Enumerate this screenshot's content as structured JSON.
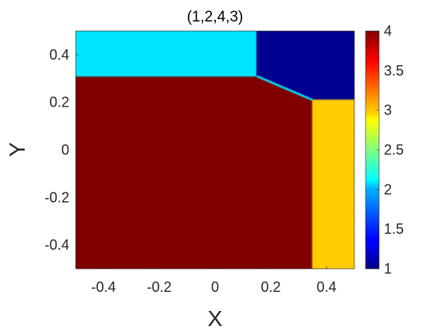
{
  "chart_data": {
    "type": "heatmap",
    "title": "(1,2,4,3)",
    "xlabel": "X",
    "ylabel": "Y",
    "xlim": [
      -0.5,
      0.5
    ],
    "ylim": [
      -0.5,
      0.5
    ],
    "xticks": [
      -0.4,
      -0.2,
      0,
      0.2,
      0.4
    ],
    "xtick_labels": [
      "-0.4",
      "-0.2",
      "0",
      "0.2",
      "0.4"
    ],
    "yticks": [
      -0.4,
      -0.2,
      0,
      0.2,
      0.4
    ],
    "ytick_labels": [
      "-0.4",
      "-0.2",
      "0",
      "0.2",
      "0.4"
    ],
    "colormap": "jet",
    "clim": [
      1,
      4
    ],
    "colorbar_ticks": [
      1,
      1.5,
      2,
      2.5,
      3,
      3.5,
      4
    ],
    "colorbar_tick_labels": [
      "1",
      "1.5",
      "2",
      "2.5",
      "3",
      "3.5",
      "4"
    ],
    "regions": [
      {
        "value": 2,
        "color": "#00e5ff",
        "polygon": [
          [
            -0.5,
            0.5
          ],
          [
            0.15,
            0.5
          ],
          [
            0.15,
            0.31
          ],
          [
            -0.5,
            0.31
          ]
        ]
      },
      {
        "value": 1,
        "color": "#000090",
        "polygon": [
          [
            0.15,
            0.5
          ],
          [
            0.5,
            0.5
          ],
          [
            0.5,
            0.21
          ],
          [
            0.35,
            0.21
          ],
          [
            0.15,
            0.31
          ]
        ]
      },
      {
        "value": 3,
        "color": "#ffcc00",
        "polygon": [
          [
            0.35,
            0.21
          ],
          [
            0.5,
            0.21
          ],
          [
            0.5,
            -0.5
          ],
          [
            0.35,
            -0.5
          ]
        ]
      },
      {
        "value": 4,
        "color": "#800000",
        "polygon": [
          [
            -0.5,
            0.31
          ],
          [
            0.15,
            0.31
          ],
          [
            0.35,
            0.21
          ],
          [
            0.35,
            -0.5
          ],
          [
            -0.5,
            -0.5
          ]
        ]
      }
    ]
  }
}
